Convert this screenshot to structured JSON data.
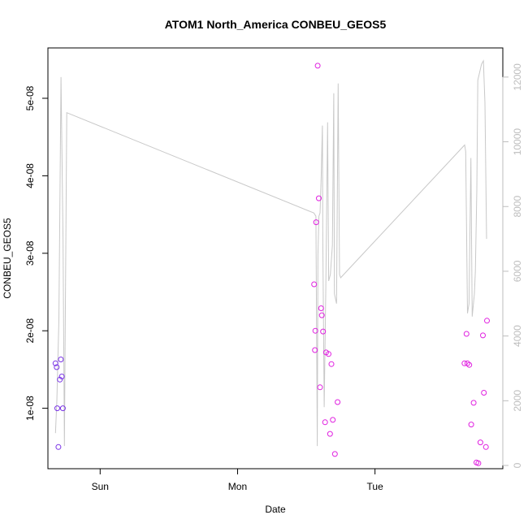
{
  "chart_data": {
    "type": "scatter",
    "title": "ATOM1 North_America CONBEU_GEOS5",
    "xlabel": "Date",
    "ylabel": "CONBEU_GEOS5",
    "x_ticks": [
      "Sun",
      "Mon",
      "Tue"
    ],
    "x_unit": "days since Sat 00:00 (Sun = 1, Mon = 2, Tue = 3)",
    "xlim": [
      0.62,
      3.93
    ],
    "ylim": [
      2.2e-09,
      5.65e-08
    ],
    "y_ticks": [
      "1e-08",
      "2e-08",
      "3e-08",
      "4e-08",
      "5e-08"
    ],
    "y_tick_values": [
      1e-08,
      2e-08,
      3e-08,
      4e-08,
      5e-08
    ],
    "y2lim": [
      -100,
      12900
    ],
    "y2_ticks": [
      "0",
      "2000",
      "4000",
      "6000",
      "8000",
      "10000",
      "12000"
    ],
    "y2_tick_values": [
      0,
      2000,
      4000,
      6000,
      8000,
      10000,
      12000
    ],
    "series": [
      {
        "type": "scatter",
        "color": "#7a33e6",
        "x": [
          0.675,
          0.684,
          0.688,
          0.696,
          0.707,
          0.714,
          0.721,
          0.729
        ],
        "y": [
          1.58e-08,
          1.53e-08,
          1e-08,
          5e-09,
          1.37e-08,
          1.63e-08,
          1.41e-08,
          1e-08
        ]
      },
      {
        "type": "scatter",
        "color": "#e020e0",
        "x": [
          2.557,
          2.563,
          2.566,
          2.572,
          2.583,
          2.591,
          2.6,
          2.608,
          2.613,
          2.622,
          2.637,
          2.644,
          2.662,
          2.673,
          2.683,
          2.693,
          2.708,
          2.728,
          3.651,
          3.666,
          3.672,
          3.686,
          3.7,
          3.718,
          3.738,
          3.752,
          3.767,
          3.785,
          3.792,
          3.807,
          3.815
        ],
        "y": [
          2.6e-08,
          1.75e-08,
          2e-08,
          3.4e-08,
          5.42e-08,
          3.71e-08,
          1.27e-08,
          2.29e-08,
          2.2e-08,
          1.99e-08,
          8.2e-09,
          1.72e-08,
          1.7e-08,
          6.7e-09,
          1.57e-08,
          8.5e-09,
          4.1e-09,
          1.08e-08,
          1.58e-08,
          1.96e-08,
          1.58e-08,
          1.56e-08,
          7.9e-09,
          1.07e-08,
          3e-09,
          2.9e-09,
          5.6e-09,
          1.94e-08,
          1.2e-08,
          5e-09,
          2.13e-08
        ]
      },
      {
        "type": "line",
        "axis": "right",
        "color": "#c8c8c8",
        "x": [
          0.675,
          0.685,
          0.7,
          0.715,
          0.73,
          0.74,
          0.745,
          0.757,
          2.555,
          2.57,
          2.58,
          2.585,
          2.592,
          2.6,
          2.609,
          2.617,
          2.62,
          2.63,
          2.642,
          2.655,
          2.663,
          2.675,
          2.69,
          2.7,
          2.705,
          2.72,
          2.732,
          2.742,
          2.75,
          3.652,
          3.66,
          3.673,
          3.684,
          3.698,
          3.707,
          3.723,
          3.73,
          3.741,
          3.748,
          3.775,
          3.789,
          3.8,
          3.812
        ],
        "y": [
          1000,
          2000,
          4500,
          12000,
          7000,
          600,
          3500,
          10900,
          7800,
          7700,
          600,
          6500,
          7700,
          7800,
          9000,
          10500,
          7000,
          1800,
          5500,
          10600,
          5700,
          5900,
          6800,
          11500,
          5300,
          5000,
          11800,
          5900,
          5800,
          9900,
          9700,
          4700,
          5000,
          9500,
          4600,
          5300,
          6000,
          8500,
          11900,
          12400,
          12500,
          11200,
          7000
        ]
      }
    ]
  }
}
